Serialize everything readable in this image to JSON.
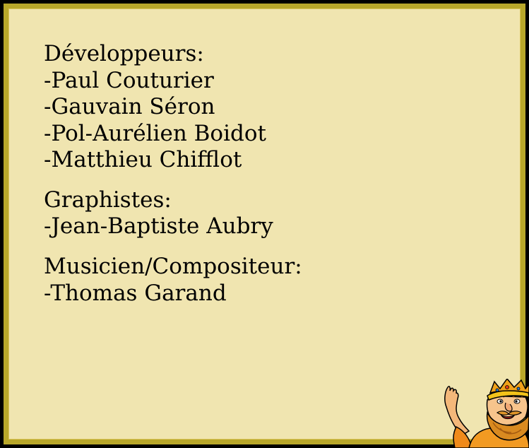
{
  "credits": {
    "developers": {
      "heading": "Développeurs:",
      "names": [
        "-Paul Couturier",
        "-Gauvain Séron",
        "-Pol-Aurélien Boidot",
        "-Matthieu Chifflot"
      ]
    },
    "graphics": {
      "heading": "Graphistes:",
      "names": [
        "-Jean-Baptiste Aubry"
      ]
    },
    "music": {
      "heading": "Musicien/Compositeur:",
      "names": [
        "-Thomas Garand"
      ]
    }
  },
  "mascot": {
    "icon": "waving-king-mascot-icon"
  },
  "colors": {
    "frame": "#b8a72a",
    "panel": "#f0e5b0",
    "background": "#000000"
  }
}
